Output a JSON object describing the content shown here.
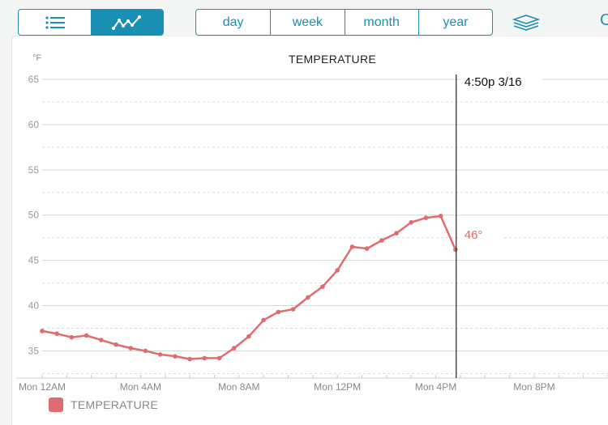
{
  "view_toggle": {
    "list_icon": "list-icon",
    "chart_icon": "line-chart-icon",
    "active": "chart"
  },
  "range_tabs": [
    "day",
    "week",
    "month",
    "year"
  ],
  "active_range": "day",
  "toolbar": {
    "layers_icon": "layers-icon",
    "sync_icon": "sync-icon"
  },
  "colors": {
    "accent": "#1a8fb4",
    "series": "#e06c70"
  },
  "chart_data": {
    "type": "line",
    "title": "TEMPERATURE",
    "ylabel": "°F",
    "ylim": [
      32,
      65
    ],
    "yticks": [
      65,
      60,
      55,
      50,
      45,
      40,
      35
    ],
    "x_tick_labels": [
      "Mon 12AM",
      "Mon 4AM",
      "Mon 8AM",
      "Mon 12PM",
      "Mon 4PM",
      "Mon 8PM"
    ],
    "x_tick_hours": [
      0,
      4,
      8,
      12,
      16,
      20
    ],
    "xlim_hours": [
      0,
      23
    ],
    "grid": true,
    "series": [
      {
        "name": "TEMPERATURE",
        "x_hours": [
          0,
          0.6,
          1.2,
          1.8,
          2.4,
          3.0,
          3.6,
          4.2,
          4.8,
          5.4,
          6.0,
          6.6,
          7.2,
          7.8,
          8.4,
          9.0,
          9.6,
          10.2,
          10.8,
          11.4,
          12.0,
          12.6,
          13.2,
          13.8,
          14.4,
          15.0,
          15.6,
          16.2,
          16.8
        ],
        "values": [
          37.2,
          36.9,
          36.5,
          36.7,
          36.2,
          35.7,
          35.3,
          35.0,
          34.6,
          34.4,
          34.1,
          34.2,
          34.2,
          35.3,
          36.6,
          38.4,
          39.3,
          39.6,
          40.9,
          42.1,
          43.9,
          46.5,
          46.3,
          47.2,
          48.0,
          49.2,
          49.7,
          49.9,
          46.2
        ]
      }
    ],
    "cursor": {
      "label": "4:50p 3/16",
      "hour": 16.83,
      "value_label": "46°"
    },
    "legend": {
      "position": "bottom-left",
      "label": "TEMPERATURE"
    }
  }
}
